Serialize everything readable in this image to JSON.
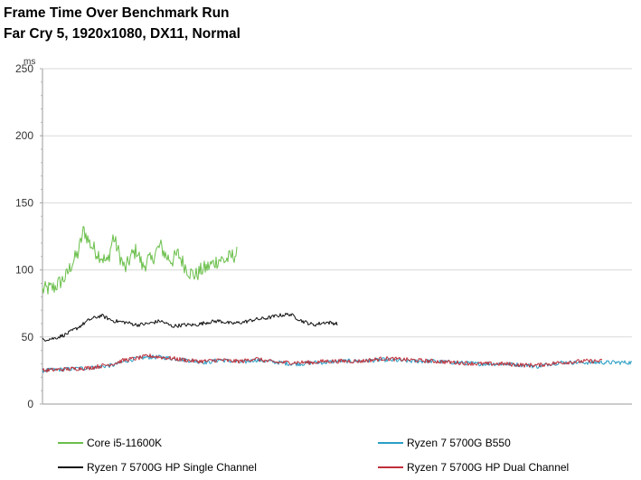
{
  "chart_data": {
    "type": "line",
    "title": "Frame Time Over Benchmark Run",
    "subtitle": "Far Cry 5, 1920x1080, DX11, Normal",
    "ylabel": "ms",
    "xlabel": "",
    "ylim": [
      0,
      250
    ],
    "yticks": [
      0,
      50,
      100,
      150,
      200,
      250
    ],
    "xlim": [
      0,
      100
    ],
    "grid": "horizontal",
    "legend": "bottom",
    "series": [
      {
        "name": "Core i5-11600K",
        "color": "#6abf4b",
        "x": [
          0,
          2,
          4,
          5,
          6,
          7,
          8,
          9,
          10,
          11,
          12,
          13,
          14,
          15,
          16,
          17,
          18,
          18.5,
          19,
          20,
          21,
          22,
          23,
          24,
          25,
          26,
          27,
          28,
          29,
          30,
          31,
          32,
          33
        ],
        "y": [
          85,
          87,
          95,
          105,
          112,
          130,
          120,
          114,
          110,
          105,
          125,
          112,
          100,
          110,
          115,
          102,
          108,
          106,
          112,
          118,
          110,
          107,
          112,
          104,
          98,
          96,
          100,
          102,
          105,
          108,
          107,
          110,
          112
        ]
      },
      {
        "name": "Ryzen 7 5700G B550",
        "color": "#2a9fc5",
        "x": [
          0,
          4,
          8,
          12,
          14,
          16,
          18,
          20,
          22,
          24,
          26,
          28,
          30,
          32,
          34,
          36,
          38,
          40,
          42,
          44,
          46,
          48,
          50,
          54,
          58,
          62,
          66,
          70,
          74,
          78,
          82,
          84,
          86,
          88,
          92,
          96,
          100
        ],
        "y": [
          25,
          26,
          27,
          29,
          32,
          34,
          35,
          35,
          34,
          33,
          32,
          31,
          33,
          32,
          31,
          33,
          32,
          31,
          30,
          30,
          31,
          31,
          32,
          32,
          33,
          32,
          32,
          31,
          30,
          30,
          29,
          28,
          30,
          31,
          31,
          31,
          31
        ]
      },
      {
        "name": "Ryzen 7 5700G HP Single Channel",
        "color": "#111111",
        "x": [
          0,
          2,
          4,
          6,
          8,
          10,
          12,
          14,
          16,
          18,
          20,
          22,
          24,
          26,
          28,
          30,
          32,
          34,
          36,
          38,
          40,
          42,
          44,
          46,
          48,
          50
        ],
        "y": [
          48,
          49,
          52,
          57,
          63,
          66,
          62,
          61,
          59,
          60,
          62,
          58,
          59,
          59,
          61,
          62,
          60,
          61,
          63,
          64,
          66,
          67,
          62,
          59,
          61,
          60
        ]
      },
      {
        "name": "Ryzen 7 5700G HP Dual Channel",
        "color": "#c0303a",
        "x": [
          0,
          4,
          8,
          12,
          14,
          16,
          18,
          20,
          22,
          24,
          26,
          28,
          30,
          32,
          34,
          36,
          38,
          40,
          42,
          44,
          46,
          48,
          50,
          54,
          58,
          62,
          66,
          70,
          74,
          78,
          82,
          84,
          86,
          88,
          92,
          95
        ],
        "y": [
          25,
          26,
          27,
          30,
          33,
          34,
          36,
          35,
          34,
          33,
          32,
          32,
          33,
          32,
          32,
          34,
          32,
          31,
          31,
          31,
          31,
          32,
          32,
          32,
          34,
          33,
          32,
          31,
          30,
          30,
          29,
          29,
          30,
          31,
          32,
          32
        ]
      }
    ]
  }
}
